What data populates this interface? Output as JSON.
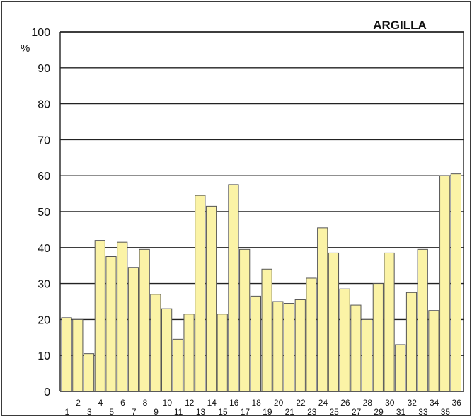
{
  "chart_data": {
    "type": "bar",
    "title": "ARGILLA",
    "ylabel": "%",
    "xlabel": "",
    "ylim": [
      0,
      100
    ],
    "yticks": [
      "0",
      "10",
      "20",
      "30",
      "40",
      "50",
      "60",
      "70",
      "80",
      "90",
      "100"
    ],
    "grid": true,
    "categories": [
      "1",
      "2",
      "3",
      "4",
      "5",
      "6",
      "7",
      "8",
      "9",
      "10",
      "11",
      "12",
      "13",
      "14",
      "15",
      "16",
      "17",
      "18",
      "19",
      "20",
      "21",
      "22",
      "23",
      "24",
      "25",
      "26",
      "27",
      "28",
      "29",
      "30",
      "31",
      "32",
      "33",
      "34",
      "35",
      "36"
    ],
    "values": [
      20.5,
      20,
      10.5,
      42,
      37.5,
      41.5,
      34.5,
      39.5,
      27,
      23,
      14.5,
      21.5,
      54.5,
      51.5,
      21.5,
      57.5,
      39.5,
      26.5,
      34,
      25,
      24.5,
      25.5,
      31.5,
      45.5,
      38.5,
      28.5,
      24,
      20,
      30,
      38.5,
      13,
      27.5,
      39.5,
      22.5,
      60,
      60.5
    ],
    "colors": {
      "bar_fill": "#fbf3a6",
      "bar_stroke": "#555555",
      "grid": "#222222",
      "text": "#111111"
    }
  }
}
